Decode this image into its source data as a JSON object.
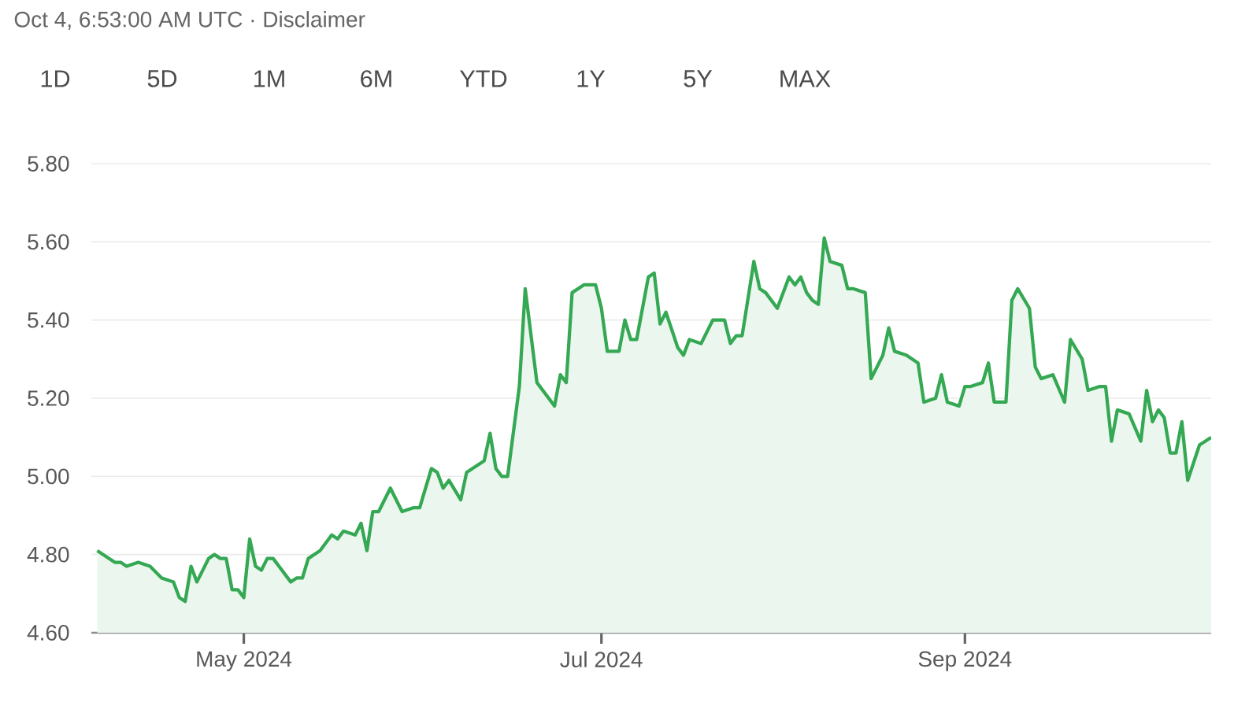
{
  "chart_data": {
    "type": "area",
    "subtitle": "Oct 4, 6:53:00 AM UTC · Disclaimer",
    "annotations": [
      "1D",
      "5D",
      "1M",
      "6M",
      "YTD",
      "1Y",
      "5Y",
      "MAX"
    ],
    "color": "#34a853",
    "grid": "y",
    "xlim": [
      "2024-04-05",
      "2024-10-13"
    ],
    "xticks": [
      {
        "value": "2024-05-01",
        "label": "May 2024"
      },
      {
        "value": "2024-07-01",
        "label": "Jul 2024"
      },
      {
        "value": "2024-09-01",
        "label": "Sep 2024"
      }
    ],
    "ylim": [
      4.6,
      5.8
    ],
    "yticks": [
      {
        "value": 4.6,
        "label": "4.60"
      },
      {
        "value": 4.8,
        "label": "4.80"
      },
      {
        "value": 5.0,
        "label": "5.00"
      },
      {
        "value": 5.2,
        "label": "5.20"
      },
      {
        "value": 5.4,
        "label": "5.40"
      },
      {
        "value": 5.6,
        "label": "5.60"
      },
      {
        "value": 5.8,
        "label": "5.80"
      }
    ],
    "x": [
      "2024-04-06",
      "2024-04-07",
      "2024-04-08",
      "2024-04-09",
      "2024-04-10",
      "2024-04-11",
      "2024-04-13",
      "2024-04-15",
      "2024-04-17",
      "2024-04-19",
      "2024-04-20",
      "2024-04-21",
      "2024-04-22",
      "2024-04-23",
      "2024-04-25",
      "2024-04-26",
      "2024-04-27",
      "2024-04-28",
      "2024-04-29",
      "2024-04-30",
      "2024-05-01",
      "2024-05-02",
      "2024-05-03",
      "2024-05-04",
      "2024-05-05",
      "2024-05-06",
      "2024-05-07",
      "2024-05-09",
      "2024-05-10",
      "2024-05-11",
      "2024-05-12",
      "2024-05-14",
      "2024-05-16",
      "2024-05-17",
      "2024-05-18",
      "2024-05-20",
      "2024-05-21",
      "2024-05-22",
      "2024-05-23",
      "2024-05-24",
      "2024-05-26",
      "2024-05-28",
      "2024-05-30",
      "2024-05-31",
      "2024-06-02",
      "2024-06-03",
      "2024-06-04",
      "2024-06-05",
      "2024-06-07",
      "2024-06-08",
      "2024-06-11",
      "2024-06-12",
      "2024-06-13",
      "2024-06-14",
      "2024-06-15",
      "2024-06-17",
      "2024-06-18",
      "2024-06-20",
      "2024-06-23",
      "2024-06-24",
      "2024-06-25",
      "2024-06-26",
      "2024-06-28",
      "2024-06-30",
      "2024-07-01",
      "2024-07-02",
      "2024-07-04",
      "2024-07-05",
      "2024-07-06",
      "2024-07-07",
      "2024-07-09",
      "2024-07-10",
      "2024-07-11",
      "2024-07-12",
      "2024-07-14",
      "2024-07-15",
      "2024-07-16",
      "2024-07-18",
      "2024-07-19",
      "2024-07-20",
      "2024-07-22",
      "2024-07-23",
      "2024-07-24",
      "2024-07-25",
      "2024-07-27",
      "2024-07-28",
      "2024-07-29",
      "2024-07-31",
      "2024-08-02",
      "2024-08-03",
      "2024-08-04",
      "2024-08-05",
      "2024-08-06",
      "2024-08-07",
      "2024-08-08",
      "2024-08-09",
      "2024-08-11",
      "2024-08-12",
      "2024-08-13",
      "2024-08-15",
      "2024-08-16",
      "2024-08-18",
      "2024-08-19",
      "2024-08-20",
      "2024-08-22",
      "2024-08-24",
      "2024-08-25",
      "2024-08-27",
      "2024-08-28",
      "2024-08-29",
      "2024-08-31",
      "2024-09-01",
      "2024-09-02",
      "2024-09-04",
      "2024-09-05",
      "2024-09-06",
      "2024-09-08",
      "2024-09-09",
      "2024-09-10",
      "2024-09-12",
      "2024-09-13",
      "2024-09-14",
      "2024-09-16",
      "2024-09-18",
      "2024-09-19",
      "2024-09-21",
      "2024-09-22",
      "2024-09-24",
      "2024-09-25",
      "2024-09-26",
      "2024-09-27",
      "2024-09-29",
      "2024-10-01",
      "2024-10-02",
      "2024-10-03",
      "2024-10-04",
      "2024-10-05",
      "2024-10-06",
      "2024-10-07",
      "2024-10-08",
      "2024-10-09",
      "2024-10-11",
      "2024-10-13"
    ],
    "values": [
      4.81,
      4.8,
      4.79,
      4.78,
      4.78,
      4.77,
      4.78,
      4.77,
      4.74,
      4.73,
      4.69,
      4.68,
      4.77,
      4.73,
      4.79,
      4.8,
      4.79,
      4.79,
      4.71,
      4.71,
      4.69,
      4.84,
      4.77,
      4.76,
      4.79,
      4.79,
      4.77,
      4.73,
      4.74,
      4.74,
      4.79,
      4.81,
      4.85,
      4.84,
      4.86,
      4.85,
      4.88,
      4.81,
      4.91,
      4.91,
      4.97,
      4.91,
      4.92,
      4.92,
      5.02,
      5.01,
      4.97,
      4.99,
      4.94,
      5.01,
      5.04,
      5.11,
      5.02,
      5.0,
      5.0,
      5.23,
      5.48,
      5.24,
      5.18,
      5.26,
      5.24,
      5.47,
      5.49,
      5.49,
      5.43,
      5.32,
      5.32,
      5.4,
      5.35,
      5.35,
      5.51,
      5.52,
      5.39,
      5.42,
      5.33,
      5.31,
      5.35,
      5.34,
      5.37,
      5.4,
      5.4,
      5.34,
      5.36,
      5.36,
      5.55,
      5.48,
      5.47,
      5.43,
      5.51,
      5.49,
      5.51,
      5.47,
      5.45,
      5.44,
      5.61,
      5.55,
      5.54,
      5.48,
      5.48,
      5.47,
      5.25,
      5.31,
      5.38,
      5.32,
      5.31,
      5.29,
      5.19,
      5.2,
      5.26,
      5.19,
      5.18,
      5.23,
      5.23,
      5.24,
      5.29,
      5.19,
      5.19,
      5.45,
      5.48,
      5.43,
      5.28,
      5.25,
      5.26,
      5.19,
      5.35,
      5.3,
      5.22,
      5.23,
      5.23,
      5.09,
      5.17,
      5.16,
      5.09,
      5.22,
      5.14,
      5.17,
      5.15,
      5.06,
      5.06,
      5.14,
      4.99,
      5.08,
      5.1
    ]
  }
}
